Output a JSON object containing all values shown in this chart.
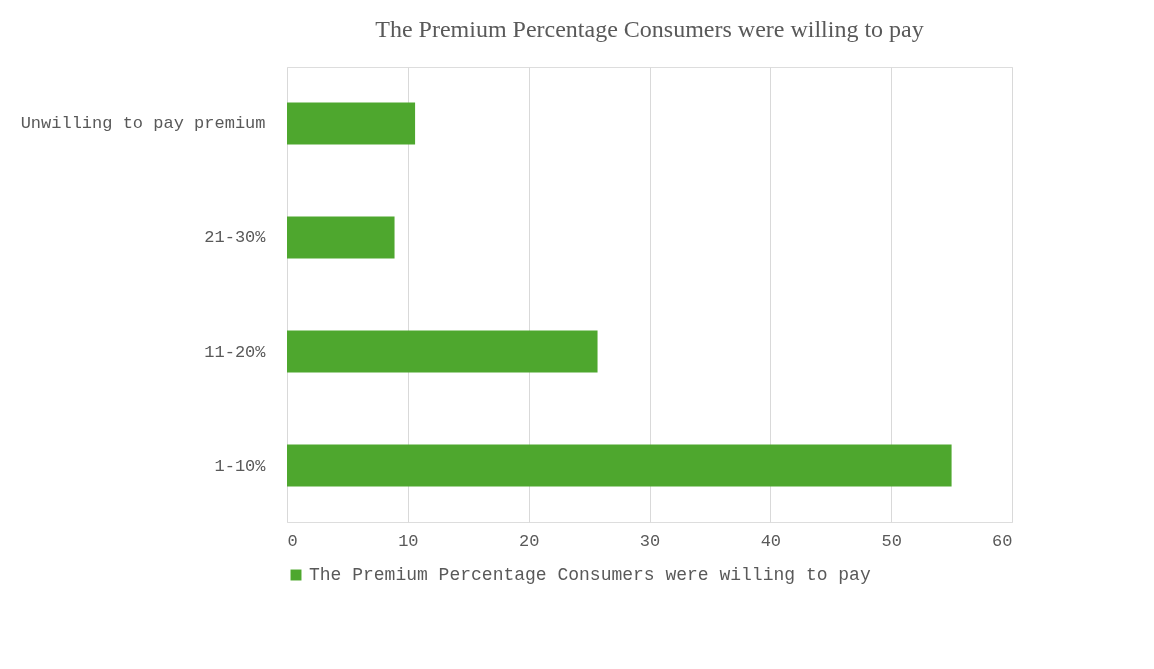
{
  "chart_data": {
    "type": "bar",
    "orientation": "horizontal",
    "title": "The Premium Percentage Consumers were willing to pay",
    "categories": [
      "Unwilling to pay premium",
      "21-30%",
      "11-20%",
      "1-10%"
    ],
    "series": [
      {
        "name": "The Premium Percentage Consumers were willing to pay",
        "color": "#4ea72e",
        "values": [
          10.6,
          8.9,
          25.7,
          55
        ]
      }
    ],
    "xlim": [
      0,
      60
    ],
    "xticks": [
      0,
      10,
      20,
      30,
      40,
      50,
      60
    ],
    "grid": "x",
    "legend": "bottom"
  }
}
